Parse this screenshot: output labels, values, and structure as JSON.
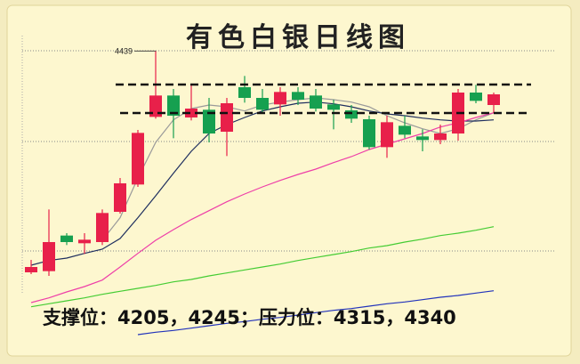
{
  "chart_data": {
    "type": "candlestick",
    "title": "有色白银日线图",
    "annotation": "支撑位：4205，4245；压力位：4315，4340",
    "categories": [
      null,
      null,
      null,
      null,
      null,
      null,
      null,
      null,
      null,
      null,
      null,
      null,
      null,
      null,
      null,
      null,
      null,
      null,
      null,
      null,
      null,
      null,
      null,
      null,
      null,
      null,
      null
    ],
    "open": [
      4066,
      4068,
      4128,
      4115,
      4117,
      4168,
      4214,
      4328,
      4364,
      4327,
      4340,
      4303,
      4378,
      4360,
      4349,
      4370,
      4364,
      4349,
      4339,
      4324,
      4277,
      4313,
      4295,
      4289,
      4300,
      4369,
      4348
    ],
    "close": [
      4075,
      4117,
      4117,
      4121,
      4166,
      4216,
      4301,
      4364,
      4330,
      4342,
      4300,
      4351,
      4360,
      4340,
      4370,
      4357,
      4342,
      4340,
      4325,
      4277,
      4319,
      4298,
      4289,
      4300,
      4369,
      4355,
      4366
    ],
    "high": [
      4087,
      4172,
      4132,
      4132,
      4172,
      4225,
      4306,
      4439,
      4375,
      4382,
      4360,
      4360,
      4397,
      4375,
      4378,
      4378,
      4375,
      4357,
      4348,
      4330,
      4330,
      4330,
      4307,
      4315,
      4375,
      4382,
      4369
    ],
    "low": [
      4063,
      4060,
      4112,
      4097,
      4112,
      4165,
      4210,
      4325,
      4292,
      4322,
      4285,
      4262,
      4352,
      4333,
      4330,
      4348,
      4337,
      4307,
      4318,
      4273,
      4259,
      4292,
      4270,
      4282,
      4288,
      4351,
      4334
    ],
    "up_color": "#e8204a",
    "down_color": "#16a050",
    "lines": [
      {
        "color": "#9a9a9a",
        "values": [
          null,
          null,
          null,
          null,
          4120,
          4158,
          4225,
          4285,
          4323,
          4342,
          4348,
          4345,
          4338,
          4348,
          4353,
          4357,
          4360,
          4357,
          4353,
          4345,
          4330,
          4318,
          4308,
          4300,
          4308,
          4323,
          4335
        ]
      },
      {
        "color": "#1f2f5f",
        "values": [
          4078,
          4086,
          4090,
          4098,
          4105,
          4123,
          4158,
          4195,
          4233,
          4270,
          4300,
          4315,
          4327,
          4338,
          4345,
          4351,
          4353,
          4350,
          4345,
          4338,
          4333,
          4330,
          4326,
          4323,
          4321,
          4321,
          4323
        ]
      },
      {
        "color": "#ee3fa8",
        "values": [
          4015,
          4023,
          4033,
          4042,
          4053,
          4075,
          4098,
          4120,
          4138,
          4155,
          4170,
          4185,
          4198,
          4210,
          4221,
          4231,
          4240,
          4251,
          4261,
          4273,
          4282,
          4291,
          4300,
          4311,
          4318,
          4327,
          4335
        ]
      },
      {
        "color": "#44cc33",
        "values": [
          4008,
          4013,
          4018,
          4023,
          4029,
          4034,
          4039,
          4044,
          4050,
          4054,
          4060,
          4065,
          4070,
          4075,
          4080,
          4086,
          4091,
          4096,
          4101,
          4107,
          4111,
          4117,
          4122,
          4128,
          4132,
          4137,
          4143
        ]
      },
      {
        "color": "#2233bb",
        "values": [
          null,
          null,
          null,
          null,
          null,
          null,
          3961,
          3965,
          3968,
          3972,
          3976,
          3980,
          3983,
          3987,
          3990,
          3994,
          3998,
          4002,
          4005,
          4009,
          4013,
          4016,
          4020,
          4024,
          4027,
          4031,
          4035
        ]
      }
    ],
    "ylim": [
      3935,
      4495
    ]
  }
}
